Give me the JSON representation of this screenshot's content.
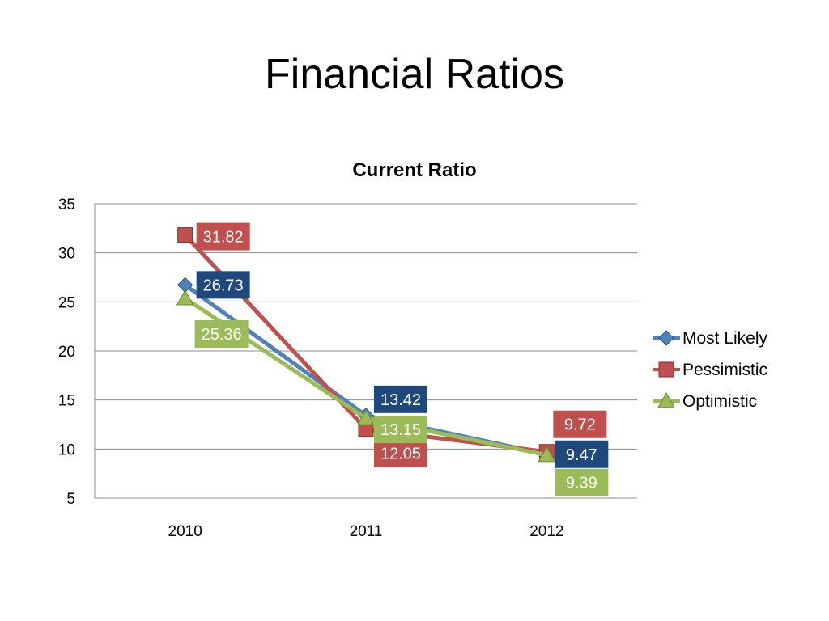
{
  "slide": {
    "title": "Financial Ratios"
  },
  "chart_data": {
    "type": "line",
    "title": "Current Ratio",
    "xlabel": "",
    "ylabel": "",
    "categories": [
      "2010",
      "2011",
      "2012"
    ],
    "ylim": [
      5,
      35
    ],
    "yticks": [
      5,
      10,
      15,
      20,
      25,
      30,
      35
    ],
    "grid": true,
    "legend_position": "right",
    "series": [
      {
        "name": "Most Likely",
        "values": [
          26.73,
          13.42,
          9.47
        ],
        "labels": [
          "26.73",
          "13.42",
          "9.47"
        ],
        "color": "#4F81BD",
        "label_bg": "#1F497D",
        "marker": "diamond"
      },
      {
        "name": "Pessimistic",
        "values": [
          31.82,
          12.05,
          9.72
        ],
        "labels": [
          "31.82",
          "12.05",
          "9.72"
        ],
        "color": "#C0504D",
        "label_bg": "#C0504D",
        "marker": "square"
      },
      {
        "name": "Optimistic",
        "values": [
          25.36,
          13.15,
          9.39
        ],
        "labels": [
          "25.36",
          "13.15",
          "9.39"
        ],
        "color": "#9BBB59",
        "label_bg": "#9BBB59",
        "marker": "triangle"
      }
    ]
  }
}
